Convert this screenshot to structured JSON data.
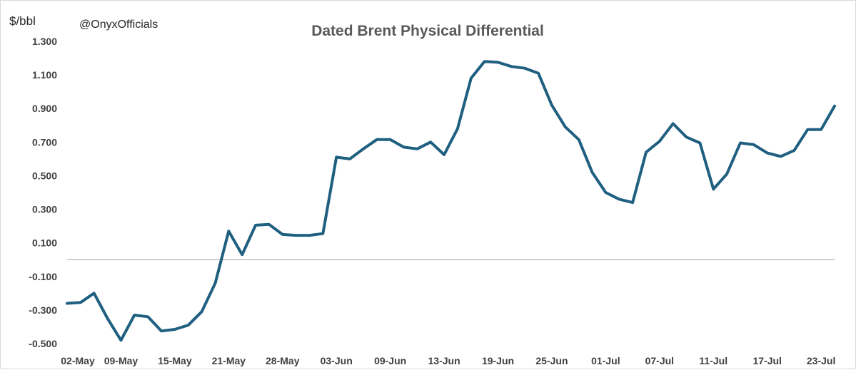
{
  "chart_data": {
    "type": "line",
    "title": "Dated Brent Physical Differential",
    "ylabel": "$/bbl",
    "annotation": "@OnyxOfficials",
    "ylim": [
      -0.5,
      1.3
    ],
    "yticks": [
      "1.300",
      "1.100",
      "0.900",
      "0.700",
      "0.500",
      "0.300",
      "0.100",
      "-0.100",
      "-0.300",
      "-0.500"
    ],
    "ytick_values": [
      1.3,
      1.1,
      0.9,
      0.7,
      0.5,
      0.3,
      0.1,
      -0.1,
      -0.3,
      -0.5
    ],
    "xticks": [
      {
        "label": "02-May",
        "index": 0
      },
      {
        "label": "09-May",
        "index": 4
      },
      {
        "label": "15-May",
        "index": 8
      },
      {
        "label": "21-May",
        "index": 12
      },
      {
        "label": "28-May",
        "index": 16
      },
      {
        "label": "03-Jun",
        "index": 20
      },
      {
        "label": "09-Jun",
        "index": 24
      },
      {
        "label": "13-Jun",
        "index": 28
      },
      {
        "label": "19-Jun",
        "index": 32
      },
      {
        "label": "25-Jun",
        "index": 36
      },
      {
        "label": "01-Jul",
        "index": 40
      },
      {
        "label": "07-Jul",
        "index": 44
      },
      {
        "label": "11-Jul",
        "index": 48
      },
      {
        "label": "17-Jul",
        "index": 52
      },
      {
        "label": "23-Jul",
        "index": 56
      }
    ],
    "grid": false,
    "legend": "none",
    "series": [
      {
        "color": "#1f5f80",
        "values": [
          -0.26,
          -0.255,
          -0.2,
          -0.35,
          -0.48,
          -0.33,
          -0.34,
          -0.425,
          -0.415,
          -0.39,
          -0.31,
          -0.14,
          0.17,
          0.03,
          0.205,
          0.21,
          0.15,
          0.145,
          0.145,
          0.155,
          0.61,
          0.6,
          0.66,
          0.715,
          0.715,
          0.67,
          0.66,
          0.7,
          0.625,
          0.78,
          1.08,
          1.18,
          1.175,
          1.15,
          1.14,
          1.11,
          0.92,
          0.79,
          0.715,
          0.52,
          0.4,
          0.36,
          0.34,
          0.64,
          0.705,
          0.81,
          0.73,
          0.695,
          0.42,
          0.51,
          0.695,
          0.685,
          0.635,
          0.615,
          0.65,
          0.775,
          0.775,
          0.915
        ]
      }
    ]
  }
}
